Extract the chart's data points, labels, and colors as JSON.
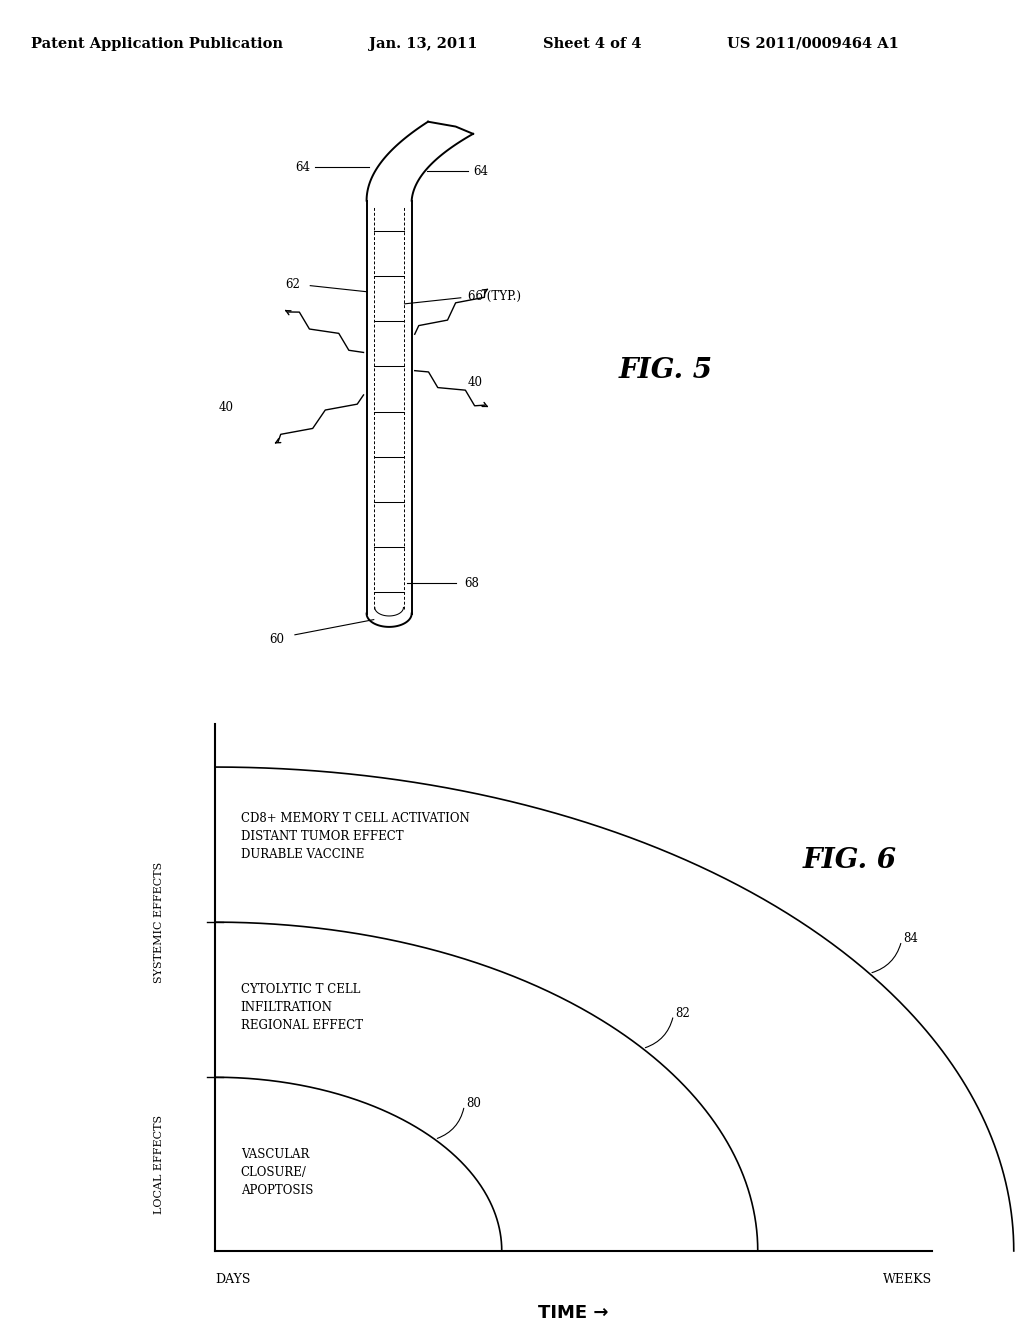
{
  "background_color": "#ffffff",
  "header_text": "Patent Application Publication",
  "header_date": "Jan. 13, 2011",
  "header_sheet": "Sheet 4 of 4",
  "header_patent": "US 2011/0009464 A1",
  "fig5_label": "FIG. 5",
  "fig6_label": "FIG. 6",
  "fig6_xlabel": "TIME →",
  "fig6_xstart": "DAYS",
  "fig6_xend": "WEEKS",
  "fig6_ylabel_bottom": "LOCAL EFFECTS",
  "fig6_ylabel_top": "SYSTEMIC EFFECTS",
  "fig6_arc1_label": "80",
  "fig6_arc2_label": "82",
  "fig6_arc3_label": "84",
  "fig6_text1_line1": "VASCULAR",
  "fig6_text1_line2": "CLOSURE/",
  "fig6_text1_line3": "APOPTOSIS",
  "fig6_text2_line1": "CYTOLYTIC T CELL",
  "fig6_text2_line2": "INFILTRATION",
  "fig6_text2_line3": "REGIONAL EFFECT",
  "fig6_text3_line1": "CD8+ MEMORY T CELL ACTIVATION",
  "fig6_text3_line2": "DISTANT TUMOR EFFECT",
  "fig6_text3_line3": "DURABLE VACCINE"
}
